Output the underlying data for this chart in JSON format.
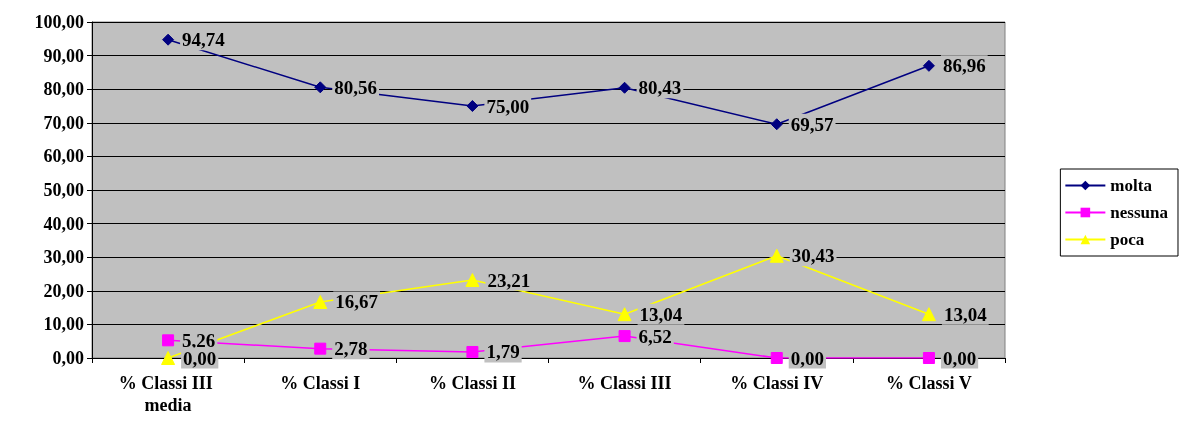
{
  "chart_data": {
    "type": "line",
    "categories": [
      "% Classi III media",
      "% Classi I",
      "% Classi II",
      "% Classi III",
      "% Classi IV",
      "% Classi V"
    ],
    "series": [
      {
        "name": "molta",
        "color": "#000080",
        "marker": "diamond",
        "values": [
          94.74,
          80.56,
          75.0,
          80.43,
          69.57,
          86.96
        ],
        "value_labels": [
          "94,74",
          "80,56",
          "75,00",
          "80,43",
          "69,57",
          "86,96"
        ]
      },
      {
        "name": "nessuna",
        "color": "#ff00ff",
        "marker": "square",
        "values": [
          5.26,
          2.78,
          1.79,
          6.52,
          0.0,
          0.0
        ],
        "value_labels": [
          "5,26",
          "2,78",
          "1,79",
          "6,52",
          "0,00",
          "0,00"
        ]
      },
      {
        "name": "poca",
        "color": "#ffff00",
        "marker": "triangle",
        "values": [
          0.0,
          16.67,
          23.21,
          13.04,
          30.43,
          13.04
        ],
        "value_labels": [
          "0,00",
          "16,67",
          "23,21",
          "13,04",
          "30,43",
          "13,04"
        ]
      }
    ],
    "ylim": [
      0,
      100
    ],
    "yticks": [
      {
        "value": 0,
        "label": "0,00"
      },
      {
        "value": 10,
        "label": "10,00"
      },
      {
        "value": 20,
        "label": "20,00"
      },
      {
        "value": 30,
        "label": "30,00"
      },
      {
        "value": 40,
        "label": "40,00"
      },
      {
        "value": 50,
        "label": "50,00"
      },
      {
        "value": 60,
        "label": "60,00"
      },
      {
        "value": 70,
        "label": "70,00"
      },
      {
        "value": 80,
        "label": "80,00"
      },
      {
        "value": 90,
        "label": "90,00"
      },
      {
        "value": 100,
        "label": "100,00"
      }
    ],
    "grid": "y",
    "legend": "right",
    "line_style": "solid"
  }
}
